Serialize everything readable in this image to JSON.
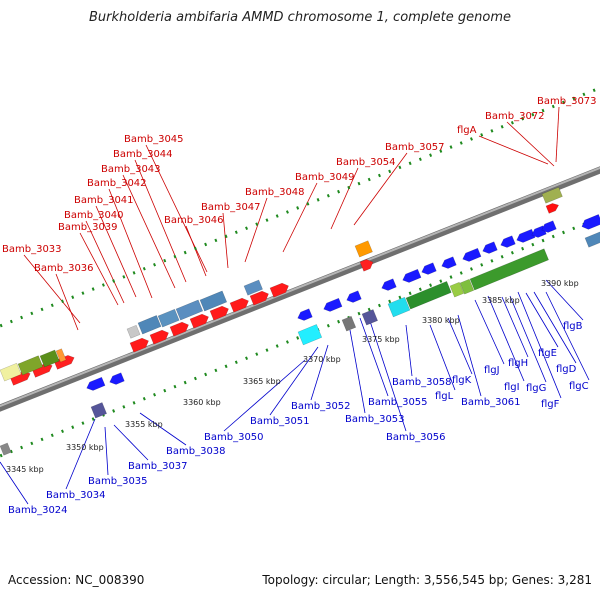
{
  "title": "Burkholderia ambifaria AMMD chromosome 1, complete genome",
  "footer": {
    "accession": "Accession: NC_008390",
    "summary": "Topology: circular; Length: 3,556,545 bp; Genes: 3,281"
  },
  "colors": {
    "forward_label": "#cc0000",
    "reverse_label": "#0000cc",
    "backbone": "#8a8a8a",
    "dots": "#1f8a1f"
  },
  "scale_ticks": [
    "3345 kbp",
    "3350 kbp",
    "3355 kbp",
    "3360 kbp",
    "3365 kbp",
    "3370 kbp",
    "3375 kbp",
    "3380 kbp",
    "3385 kbp",
    "3390 kbp"
  ],
  "forward_genes": [
    "Bamb_3033",
    "Bamb_3036",
    "Bamb_3039",
    "Bamb_3040",
    "Bamb_3041",
    "Bamb_3042",
    "Bamb_3043",
    "Bamb_3044",
    "Bamb_3045",
    "Bamb_3046",
    "Bamb_3047",
    "Bamb_3048",
    "Bamb_3049",
    "Bamb_3054",
    "Bamb_3057",
    "flgA",
    "Bamb_3072",
    "Bamb_3073"
  ],
  "reverse_genes": [
    "Bamb_3024",
    "Bamb_3034",
    "Bamb_3035",
    "Bamb_3037",
    "Bamb_3038",
    "Bamb_3050",
    "Bamb_3051",
    "Bamb_3052",
    "Bamb_3053",
    "Bamb_3055",
    "Bamb_3056",
    "Bamb_3058",
    "flgL",
    "flgK",
    "Bamb_3061",
    "flgJ",
    "flgI",
    "flgH",
    "flgG",
    "flgF",
    "flgE",
    "flgD",
    "flgC",
    "flgB"
  ]
}
